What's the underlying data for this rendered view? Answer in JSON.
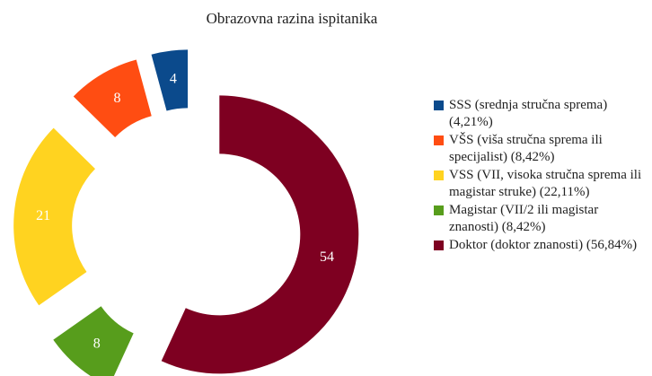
{
  "chart_data": {
    "type": "donut",
    "title": "Obrazovna razina ispitanika",
    "series": [
      {
        "name": "SSS (srednja stručna sprema) (4,21%)",
        "color": "#0b4a8c",
        "value": 4
      },
      {
        "name": "VŠS (viša stručna sprema ili specijalist) (8,42%)",
        "color": "#ff4d12",
        "value": 8
      },
      {
        "name": "VSS (VII, visoka stručna sprema ili magistar struke) (22,11%)",
        "color": "#ffd320",
        "value": 21
      },
      {
        "name": "Magistar (VII/2 ili magistar znanosti) (8,42%)",
        "color": "#579d1c",
        "value": 8
      },
      {
        "name": "Doktor (doktor znanosti) (56,84%)",
        "color": "#7e0021",
        "value": 54
      }
    ],
    "legend": "right"
  }
}
